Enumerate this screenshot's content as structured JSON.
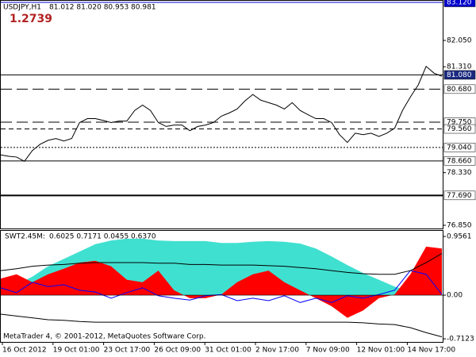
{
  "chart_data": [
    {
      "type": "line",
      "title": "USDJPY,H1",
      "subtitle": "81.012 81.020 80.953 80.981",
      "annotation": "1.2739",
      "ylim": [
        76.76,
        83.165
      ],
      "yticks": [
        {
          "value": 82.05,
          "label": "82.050"
        },
        {
          "value": 81.31,
          "label": "81.310"
        },
        {
          "value": 78.33,
          "label": "78.330"
        },
        {
          "value": 76.85,
          "label": "76.850"
        }
      ],
      "levels": [
        {
          "value": 83.12,
          "label": "83.120",
          "style": "solid",
          "color": "#0000cc",
          "label_bg": "#0000cc",
          "label_color": "#ffffff"
        },
        {
          "value": 81.08,
          "label": "81.080",
          "style": "solid",
          "color": "#000000",
          "label_bg": "#1a2a80",
          "label_color": "#ffffff"
        },
        {
          "value": 80.68,
          "label": "80.680",
          "style": "dashed",
          "color": "#000000",
          "label_bg": "#ffffff",
          "label_color": "#000000"
        },
        {
          "value": 79.75,
          "label": "79.750",
          "style": "dashed",
          "color": "#000000",
          "label_bg": "#ffffff",
          "label_color": "#000000"
        },
        {
          "value": 79.56,
          "label": "79.560",
          "style": "short-dashed",
          "color": "#000000",
          "label_bg": "#ffffff",
          "label_color": "#000000"
        },
        {
          "value": 79.04,
          "label": "79.040",
          "style": "dotted",
          "color": "#000000",
          "label_bg": "#ffffff",
          "label_color": "#000000"
        },
        {
          "value": 78.66,
          "label": "78.660",
          "style": "solid",
          "color": "#000000",
          "label_bg": "#ffffff",
          "label_color": "#000000"
        },
        {
          "value": 77.69,
          "label": "77.690",
          "style": "thick",
          "color": "#000000",
          "label_bg": "#ffffff",
          "label_color": "#000000"
        }
      ],
      "series": [
        {
          "color": "#000000",
          "kind": "line",
          "values": [
            78.83,
            78.79,
            78.77,
            78.65,
            78.95,
            79.13,
            79.24,
            79.29,
            79.22,
            79.29,
            79.74,
            79.85,
            79.85,
            79.8,
            79.74,
            79.78,
            79.78,
            80.08,
            80.23,
            80.08,
            79.74,
            79.63,
            79.67,
            79.67,
            79.51,
            79.63,
            79.67,
            79.74,
            79.92,
            80.01,
            80.12,
            80.35,
            80.53,
            80.37,
            80.3,
            80.23,
            80.12,
            80.3,
            80.08,
            79.96,
            79.85,
            79.85,
            79.74,
            79.4,
            79.18,
            79.44,
            79.4,
            79.44,
            79.35,
            79.44,
            79.58,
            80.08,
            80.46,
            80.8,
            81.32,
            81.13,
            81.04
          ]
        }
      ]
    },
    {
      "type": "line",
      "title": "SWT2.45M:",
      "subtitle": "0.6025 0.7171 0.0455 0.6370",
      "ylim": [
        -0.762,
        1.047
      ],
      "yticks": [
        0.9561,
        {
          "value": 0,
          "label": "0.00"
        },
        -0.7123
      ],
      "series": [
        {
          "color": "#40e0d0",
          "kind": "area",
          "values": [
            0.08,
            0.17,
            0.3,
            0.47,
            0.59,
            0.71,
            0.83,
            0.89,
            0.92,
            0.92,
            0.89,
            0.88,
            0.88,
            0.88,
            0.85,
            0.85,
            0.87,
            0.88,
            0.87,
            0.84,
            0.76,
            0.63,
            0.49,
            0.36,
            0.25,
            0.14,
            0.06,
            0,
            0
          ]
        },
        {
          "color": "#ff0000",
          "kind": "area",
          "values": [
            0.27,
            0.34,
            0.21,
            0.34,
            0.43,
            0.53,
            0.56,
            0.47,
            0.25,
            0.21,
            0.4,
            0.08,
            -0.05,
            -0.05,
            0.01,
            0.21,
            0.34,
            0.4,
            0.21,
            0.08,
            -0.05,
            -0.18,
            -0.37,
            -0.25,
            -0.05,
            0.01,
            0.34,
            0.79,
            0.76
          ]
        },
        {
          "color": "#0000ff",
          "kind": "line",
          "values": [
            0.12,
            0.04,
            0.21,
            0.14,
            0.17,
            0.08,
            0.05,
            -0.05,
            0.04,
            0.12,
            -0.01,
            -0.05,
            -0.08,
            -0.01,
            0.01,
            -0.09,
            -0.05,
            -0.09,
            -0.01,
            -0.12,
            -0.05,
            -0.12,
            -0.01,
            -0.05,
            0.01,
            0.08,
            0.4,
            0.34,
            0.01
          ]
        },
        {
          "color": "#000000",
          "kind": "line",
          "values": [
            0.4,
            0.43,
            0.47,
            0.49,
            0.5,
            0.52,
            0.53,
            0.53,
            0.53,
            0.53,
            0.52,
            0.52,
            0.5,
            0.5,
            0.49,
            0.49,
            0.49,
            0.48,
            0.47,
            0.45,
            0.43,
            0.4,
            0.37,
            0.35,
            0.34,
            0.34,
            0.4,
            0.53,
            0.68
          ]
        },
        {
          "color": "#000000",
          "kind": "line",
          "values": [
            -0.31,
            -0.34,
            -0.37,
            -0.4,
            -0.41,
            -0.43,
            -0.44,
            -0.44,
            -0.44,
            -0.44,
            -0.44,
            -0.44,
            -0.44,
            -0.44,
            -0.44,
            -0.44,
            -0.44,
            -0.44,
            -0.44,
            -0.44,
            -0.44,
            -0.44,
            -0.44,
            -0.45,
            -0.47,
            -0.48,
            -0.53,
            -0.61,
            -0.68
          ]
        }
      ]
    }
  ],
  "x_axis": {
    "labels": [
      "16 Oct 2012",
      "19 Oct 01:00",
      "23 Oct 17:00",
      "26 Oct 09:00",
      "31 Oct 01:00",
      "2 Nov 17:00",
      "7 Nov 09:00",
      "12 Nov 01:00",
      "14 Nov 17:00"
    ]
  },
  "footer": "MetaTrader 4, © 2001-2012, MetaQuotes Software Corp."
}
